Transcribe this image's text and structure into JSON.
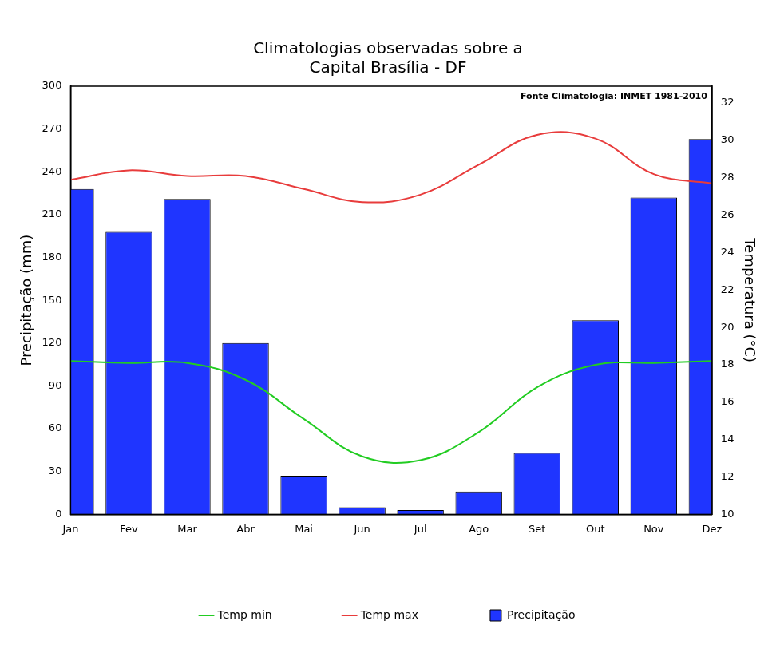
{
  "chart_data": {
    "type": "bar",
    "title": [
      "Climatologias observadas sobre a",
      "Capital Brasília - DF"
    ],
    "annotation": "Fonte Climatologia: INMET 1981-2010",
    "y_label": "Precipitação (mm)",
    "y2_label": "Temperatura (°C)",
    "categories": [
      "Jan",
      "Fev",
      "Mar",
      "Abr",
      "Mai",
      "Jun",
      "Jul",
      "Ago",
      "Set",
      "Out",
      "Nov",
      "Dez"
    ],
    "series": [
      {
        "name": "Precipitação",
        "type": "bar",
        "color": "#1f35ff",
        "values": [
          228,
          198,
          221,
          120,
          27,
          5,
          3,
          16,
          43,
          136,
          222,
          263
        ]
      },
      {
        "name": "Temp min",
        "type": "line",
        "axis": "y2",
        "color": "#22cc22",
        "line_style": "solid",
        "values": [
          18.2,
          18.1,
          18.1,
          17.2,
          15.1,
          13.1,
          12.9,
          14.4,
          16.8,
          18.0,
          18.1,
          18.2
        ]
      },
      {
        "name": "Temp max",
        "type": "line",
        "axis": "y2",
        "color": "#e83c3c",
        "line_style": "solid",
        "values": [
          27.9,
          28.4,
          28.1,
          28.1,
          27.4,
          26.7,
          27.1,
          28.7,
          30.3,
          30.1,
          28.2,
          27.7
        ]
      }
    ],
    "ylim": [
      0,
      300
    ],
    "yticks": [
      0,
      30,
      60,
      90,
      120,
      150,
      180,
      210,
      240,
      270,
      300
    ],
    "y2lim": [
      10,
      32.9
    ],
    "y2ticks": [
      10,
      12,
      14,
      16,
      18,
      20,
      22,
      24,
      26,
      28,
      30,
      32
    ],
    "grid": false,
    "legend": "bottom"
  }
}
